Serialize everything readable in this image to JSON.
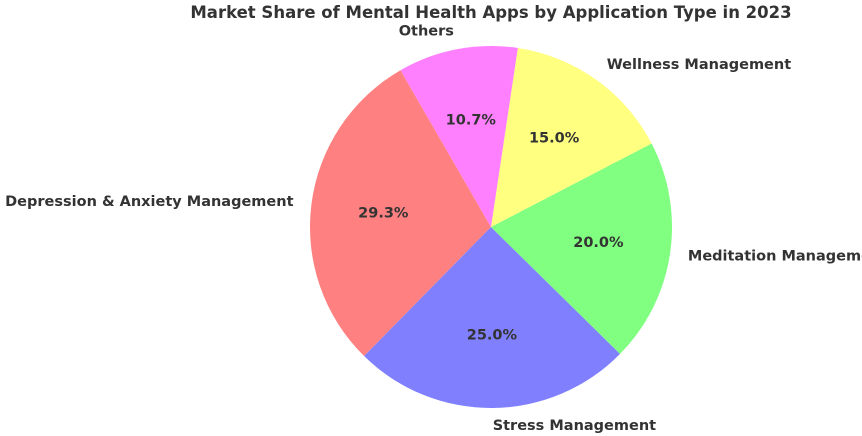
{
  "chart_data": {
    "type": "pie",
    "title": "Market Share of Mental Health Apps by Application Type in 2023",
    "categories": [
      "Depression & Anxiety Management",
      "Stress Management",
      "Meditation Management",
      "Wellness Management",
      "Others"
    ],
    "values": [
      29.3,
      25.0,
      20.0,
      15.0,
      10.7
    ],
    "value_labels": [
      "29.3%",
      "25.0%",
      "20.0%",
      "15.0%",
      "10.7%"
    ],
    "colors": [
      "#ff8080",
      "#8080ff",
      "#80ff80",
      "#ffff80",
      "#ff80ff"
    ],
    "start_angle_deg": 120,
    "direction": "counterclockwise",
    "legend": "none",
    "grid": false
  }
}
